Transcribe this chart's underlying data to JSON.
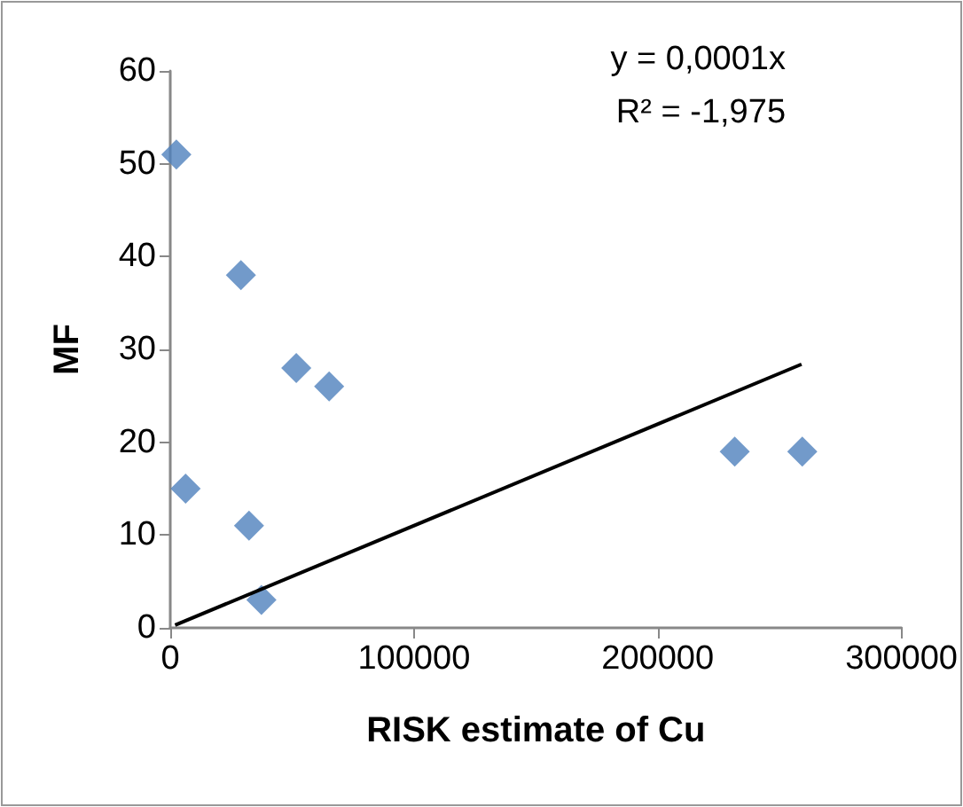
{
  "chart_data": {
    "type": "scatter",
    "xlabel": "RISK estimate of Cu",
    "ylabel": "MF",
    "marker": "diamond",
    "annotations": [
      "y = 0,0001x",
      "R² = -1,975"
    ],
    "xlim": [
      0,
      300000
    ],
    "xticks": [
      0,
      100000,
      200000,
      300000
    ],
    "ylim": [
      0,
      60
    ],
    "yticks": [
      0,
      10,
      20,
      30,
      40,
      50,
      60
    ],
    "series": [
      {
        "type": "scatter",
        "color": "#4f81bd",
        "x": [
          2500,
          29000,
          51700,
          65200,
          6300,
          32300,
          37400,
          231600,
          259300
        ],
        "values": [
          51,
          38,
          28,
          26,
          15,
          11,
          3,
          19,
          19
        ]
      },
      {
        "type": "line",
        "color": "#000000",
        "marker": "none",
        "x": [
          2000,
          259000
        ],
        "values": [
          0.3,
          28.4
        ]
      }
    ]
  }
}
